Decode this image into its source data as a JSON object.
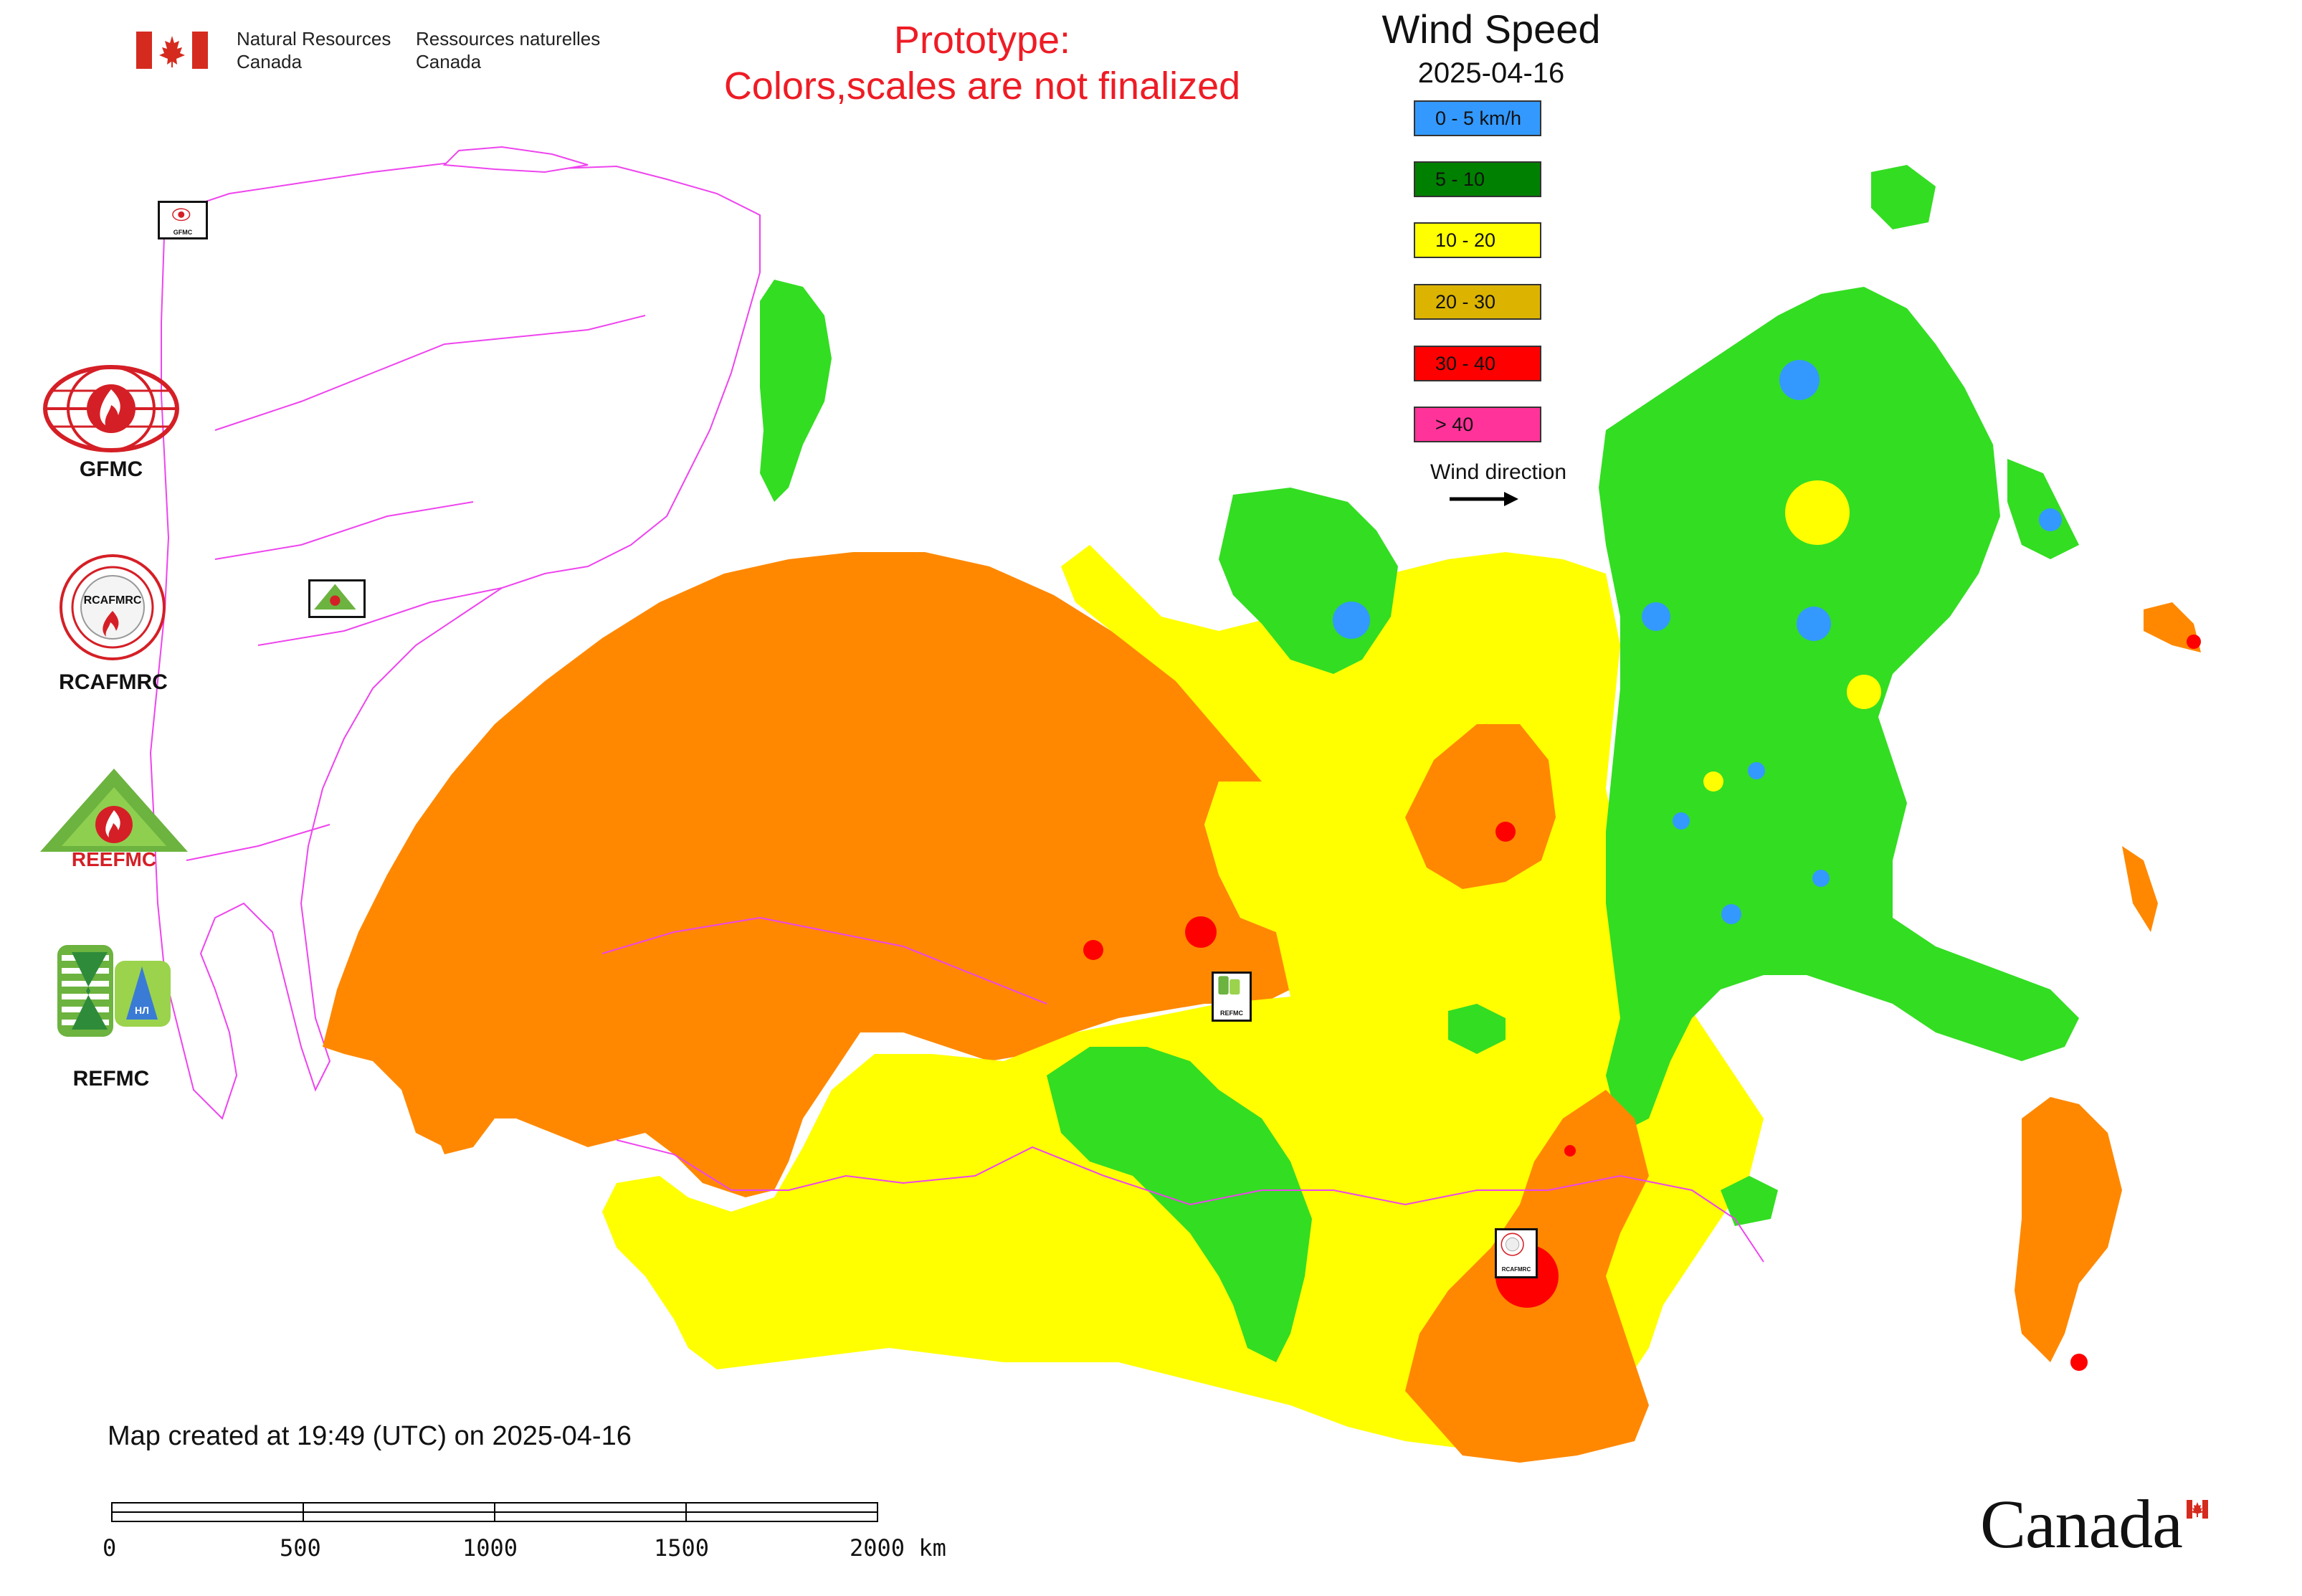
{
  "header": {
    "agency_en": "Natural Resources\nCanada",
    "agency_fr": "Ressources naturelles\nCanada",
    "prototype_line1": "Prototype:",
    "prototype_line2": "Colors,scales are not finalized"
  },
  "legend": {
    "title": "Wind Speed",
    "date": "2025-04-16",
    "items": [
      {
        "label": "0 - 5 km/h",
        "color": "#3399ff"
      },
      {
        "label": "5 - 10",
        "color": "#008000"
      },
      {
        "label": "10 - 20",
        "color": "#ffff00"
      },
      {
        "label": "20 - 30",
        "color": "#dcb400"
      },
      {
        "label": "30 - 40",
        "color": "#ff0000"
      },
      {
        "label": "> 40",
        "color": "#ff3399"
      }
    ],
    "wind_direction": "Wind direction"
  },
  "colors": {
    "zone_0_5": "#3399ff",
    "zone_5_10": "#33dd22",
    "zone_10_20": "#ffff00",
    "zone_20_30": "#ff8800",
    "zone_30_40": "#ff0000",
    "zone_over_40": "#ff0066",
    "borders": "#ee44ee"
  },
  "centers": {
    "gfmc": "GFMC",
    "rcafmrc": "RCAFMRC",
    "reefmc": "REEFMC",
    "refmc": "REFMC",
    "tiny_gfmc": "GFMC",
    "tiny_refmc": "REFMC",
    "tiny_rcafmrc": "RCAFMRC",
    "logo_rcafmrc_text": "RCAFMRC",
    "logo_reefmc_text": "REEFMC",
    "logo_refmc_text": "НЛ"
  },
  "footer": {
    "created": "Map created at 19:49 (UTC) on 2025-04-16",
    "scale_labels": [
      "0",
      "500",
      "1000",
      "1500",
      "2000 km"
    ],
    "wordmark": "Canada"
  }
}
